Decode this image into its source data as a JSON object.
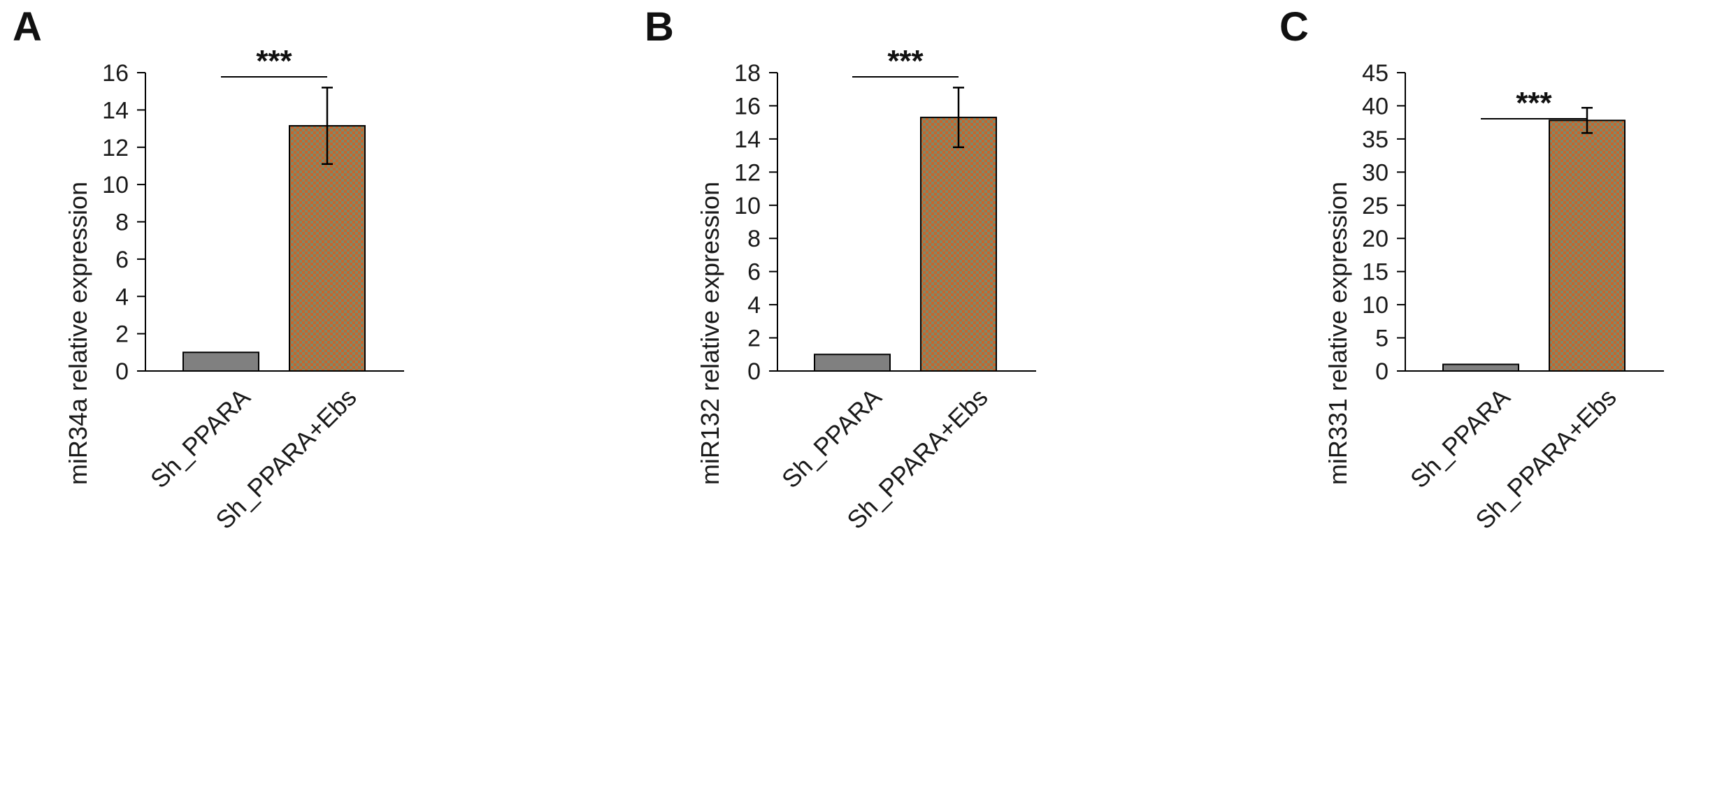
{
  "chart_data": [
    {
      "type": "bar",
      "panel": "A",
      "categories": [
        "Sh_PPARA",
        "Sh_PPARA+Ebs"
      ],
      "values": [
        1.0,
        13.15
      ],
      "errors": [
        0,
        2.05
      ],
      "ylabel": "miR34a relative expression",
      "ylim": [
        0,
        16
      ],
      "yticks": [
        0,
        2,
        4,
        6,
        8,
        10,
        12,
        14,
        16
      ],
      "significance": "***",
      "grid": false
    },
    {
      "type": "bar",
      "panel": "B",
      "categories": [
        "Sh_PPARA",
        "Sh_PPARA+Ebs"
      ],
      "values": [
        1.0,
        15.3
      ],
      "errors": [
        0,
        1.8
      ],
      "ylabel": "miR132 relative expression",
      "ylim": [
        0,
        18
      ],
      "yticks": [
        0,
        2,
        4,
        6,
        8,
        10,
        12,
        14,
        16,
        18
      ],
      "significance": "***",
      "grid": false
    },
    {
      "type": "bar",
      "panel": "C",
      "categories": [
        "Sh_PPARA",
        "Sh_PPARA+Ebs"
      ],
      "values": [
        1.0,
        37.8
      ],
      "errors": [
        0,
        1.9
      ],
      "ylabel": "miR331 relative expression",
      "ylim": [
        0,
        45
      ],
      "yticks": [
        0,
        5,
        10,
        15,
        20,
        25,
        30,
        35,
        40,
        45
      ],
      "significance": "***",
      "grid": false
    }
  ],
  "colors": {
    "control_bar": "#808080",
    "treated_bar_base": "#c8642c",
    "treated_bar_check": "#7e8a6a",
    "axis": "#000000"
  }
}
